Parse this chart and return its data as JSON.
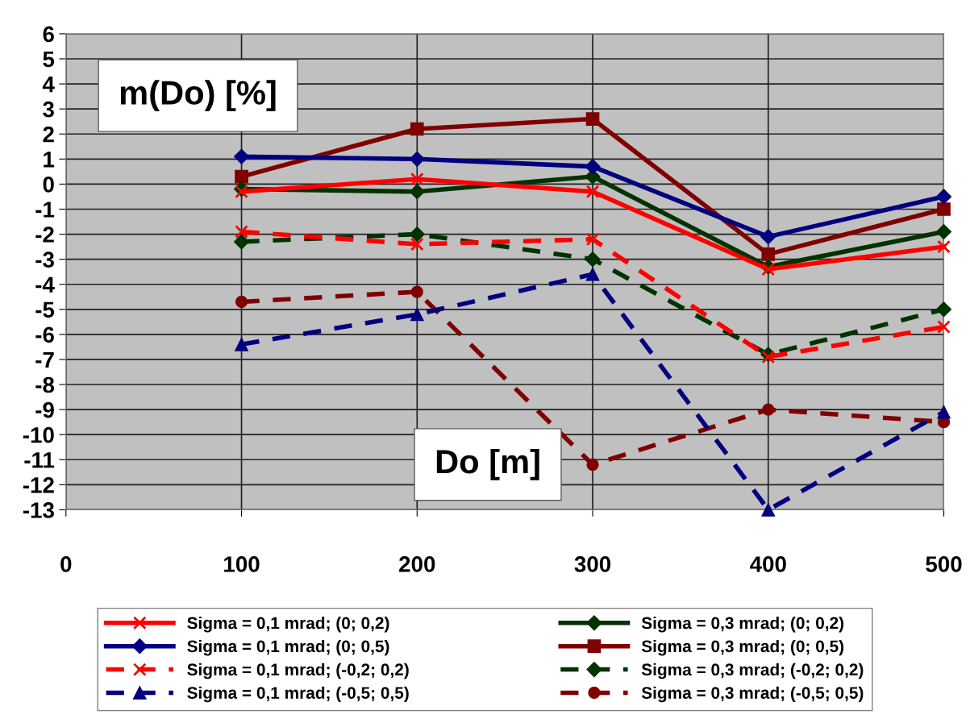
{
  "chart_data": {
    "type": "line",
    "xlabel": "Do [m]",
    "ylabel": "m(Do) [%]",
    "x": [
      100,
      200,
      300,
      400,
      500
    ],
    "xlim": [
      0,
      500
    ],
    "xticks": [
      0,
      100,
      200,
      300,
      400,
      500
    ],
    "ylim": [
      -13,
      6
    ],
    "yticks": [
      -13,
      -12,
      -11,
      -10,
      -9,
      -8,
      -7,
      -6,
      -5,
      -4,
      -3,
      -2,
      -1,
      0,
      1,
      2,
      3,
      4,
      5,
      6
    ],
    "grid": true,
    "legend": "bottom",
    "series": [
      {
        "name": "Sigma = 0,1 mrad; (0; 0,2)",
        "color": "#ff0000",
        "marker": "cross",
        "line_style": "solid",
        "values": [
          -0.3,
          0.2,
          -0.3,
          -3.4,
          -2.5
        ]
      },
      {
        "name": "Sigma = 0,1 mrad; (0; 0,5)",
        "color": "#000080",
        "marker": "diamond",
        "line_style": "solid",
        "values": [
          1.1,
          1.0,
          0.7,
          -2.1,
          -0.5
        ]
      },
      {
        "name": "Sigma = 0,1 mrad; (-0,2; 0,2)",
        "color": "#ff0000",
        "marker": "cross",
        "line_style": "dashed",
        "values": [
          -1.9,
          -2.4,
          -2.2,
          -6.9,
          -5.7
        ]
      },
      {
        "name": "Sigma = 0,1 mrad; (-0,5; 0,5)",
        "color": "#000080",
        "marker": "triangle",
        "line_style": "dashed",
        "values": [
          -6.4,
          -5.2,
          -3.6,
          -13.0,
          -9.1
        ]
      },
      {
        "name": "Sigma = 0,3 mrad; (0; 0,2)",
        "color": "#003300",
        "marker": "diamond",
        "line_style": "solid",
        "values": [
          -0.2,
          -0.3,
          0.3,
          -3.3,
          -1.9
        ]
      },
      {
        "name": "Sigma = 0,3 mrad; (0; 0,5)",
        "color": "#800000",
        "marker": "square",
        "line_style": "solid",
        "values": [
          0.3,
          2.2,
          2.6,
          -2.8,
          -1.0
        ]
      },
      {
        "name": "Sigma = 0,3 mrad; (-0,2; 0,2)",
        "color": "#003300",
        "marker": "diamond",
        "line_style": "dashed",
        "values": [
          -2.3,
          -2.0,
          -3.0,
          -6.8,
          -5.0
        ]
      },
      {
        "name": "Sigma = 0,3 mrad; (-0,5; 0,5)",
        "color": "#800000",
        "marker": "circle",
        "line_style": "dashed",
        "values": [
          -4.7,
          -4.3,
          -11.2,
          -9.0,
          -9.5
        ]
      }
    ]
  }
}
